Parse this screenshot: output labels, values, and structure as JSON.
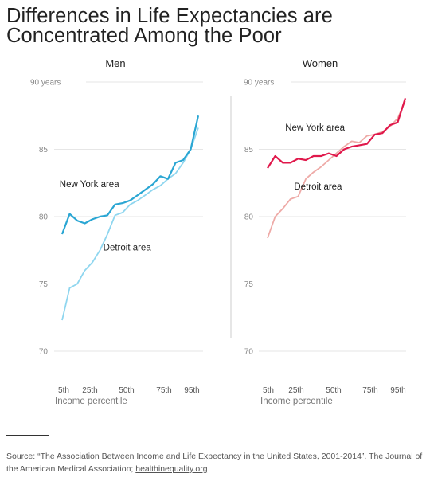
{
  "title_line1": "Differences in Life Expectancies are",
  "title_line2": "Concentrated Among the Poor",
  "source": {
    "text": "Source: “The Association Between Income and Life Expectancy in the United States, 2001-2014”, The Journal of the American Medical Association; ",
    "link": "healthinequality.org"
  },
  "colors": {
    "men_ny": "#2aa6d3",
    "men_detroit": "#8fd6ef",
    "women_ny": "#e0184b",
    "women_detroit": "#eeaaa7",
    "grid": "#e6e6e6",
    "divider": "#cccccc"
  },
  "chart_data": [
    {
      "type": "line",
      "title": "Men",
      "xlabel": "Income percentile",
      "ylabel": "",
      "xlim": [
        5,
        95
      ],
      "ylim": [
        70,
        90
      ],
      "y_ticks": [
        "90 years",
        "85",
        "80",
        "75",
        "70"
      ],
      "x_ticks": [
        "5th",
        "25th",
        "50th",
        "75th",
        "95th"
      ],
      "grid": true,
      "x": [
        5,
        10,
        15,
        20,
        25,
        30,
        35,
        40,
        45,
        50,
        55,
        60,
        65,
        70,
        75,
        80,
        85,
        90,
        95
      ],
      "series": [
        {
          "name": "New York area",
          "color_key": "men_ny",
          "values": [
            78.7,
            80.2,
            79.7,
            79.5,
            79.8,
            80.0,
            80.1,
            80.9,
            81.0,
            81.2,
            81.6,
            82.0,
            82.4,
            83.0,
            82.8,
            84.0,
            84.2,
            85.0,
            87.5
          ],
          "label_at": [
            23,
            82.2
          ]
        },
        {
          "name": "Detroit area",
          "color_key": "men_detroit",
          "values": [
            72.3,
            74.7,
            75.0,
            76.0,
            76.6,
            77.5,
            78.7,
            80.1,
            80.3,
            80.9,
            81.2,
            81.6,
            82.0,
            82.3,
            82.8,
            83.2,
            84.0,
            85.0,
            86.6
          ],
          "label_at": [
            48,
            77.5
          ]
        }
      ]
    },
    {
      "type": "line",
      "title": "Women",
      "xlabel": "Income percentile",
      "ylabel": "",
      "xlim": [
        5,
        95
      ],
      "ylim": [
        70,
        90
      ],
      "y_ticks": [
        "90 years",
        "85",
        "80",
        "75",
        "70"
      ],
      "x_ticks": [
        "5th",
        "25th",
        "50th",
        "75th",
        "95th"
      ],
      "grid": true,
      "x": [
        5,
        10,
        15,
        20,
        25,
        30,
        35,
        40,
        45,
        50,
        55,
        60,
        65,
        70,
        75,
        80,
        85,
        90,
        95
      ],
      "series": [
        {
          "name": "New York area",
          "color_key": "women_ny",
          "values": [
            83.6,
            84.5,
            84.0,
            84.0,
            84.3,
            84.2,
            84.5,
            84.5,
            84.7,
            84.5,
            85.0,
            85.2,
            85.3,
            85.4,
            86.1,
            86.2,
            86.8,
            87.0,
            88.8
          ],
          "label_at": [
            36,
            86.4
          ]
        },
        {
          "name": "Detroit area",
          "color_key": "women_detroit",
          "values": [
            78.4,
            80.0,
            80.6,
            81.3,
            81.5,
            82.8,
            83.3,
            83.7,
            84.2,
            84.7,
            85.2,
            85.6,
            85.5,
            86.0,
            86.1,
            86.3,
            86.7,
            87.3,
            88.6
          ],
          "label_at": [
            38,
            82.0
          ]
        }
      ]
    }
  ]
}
